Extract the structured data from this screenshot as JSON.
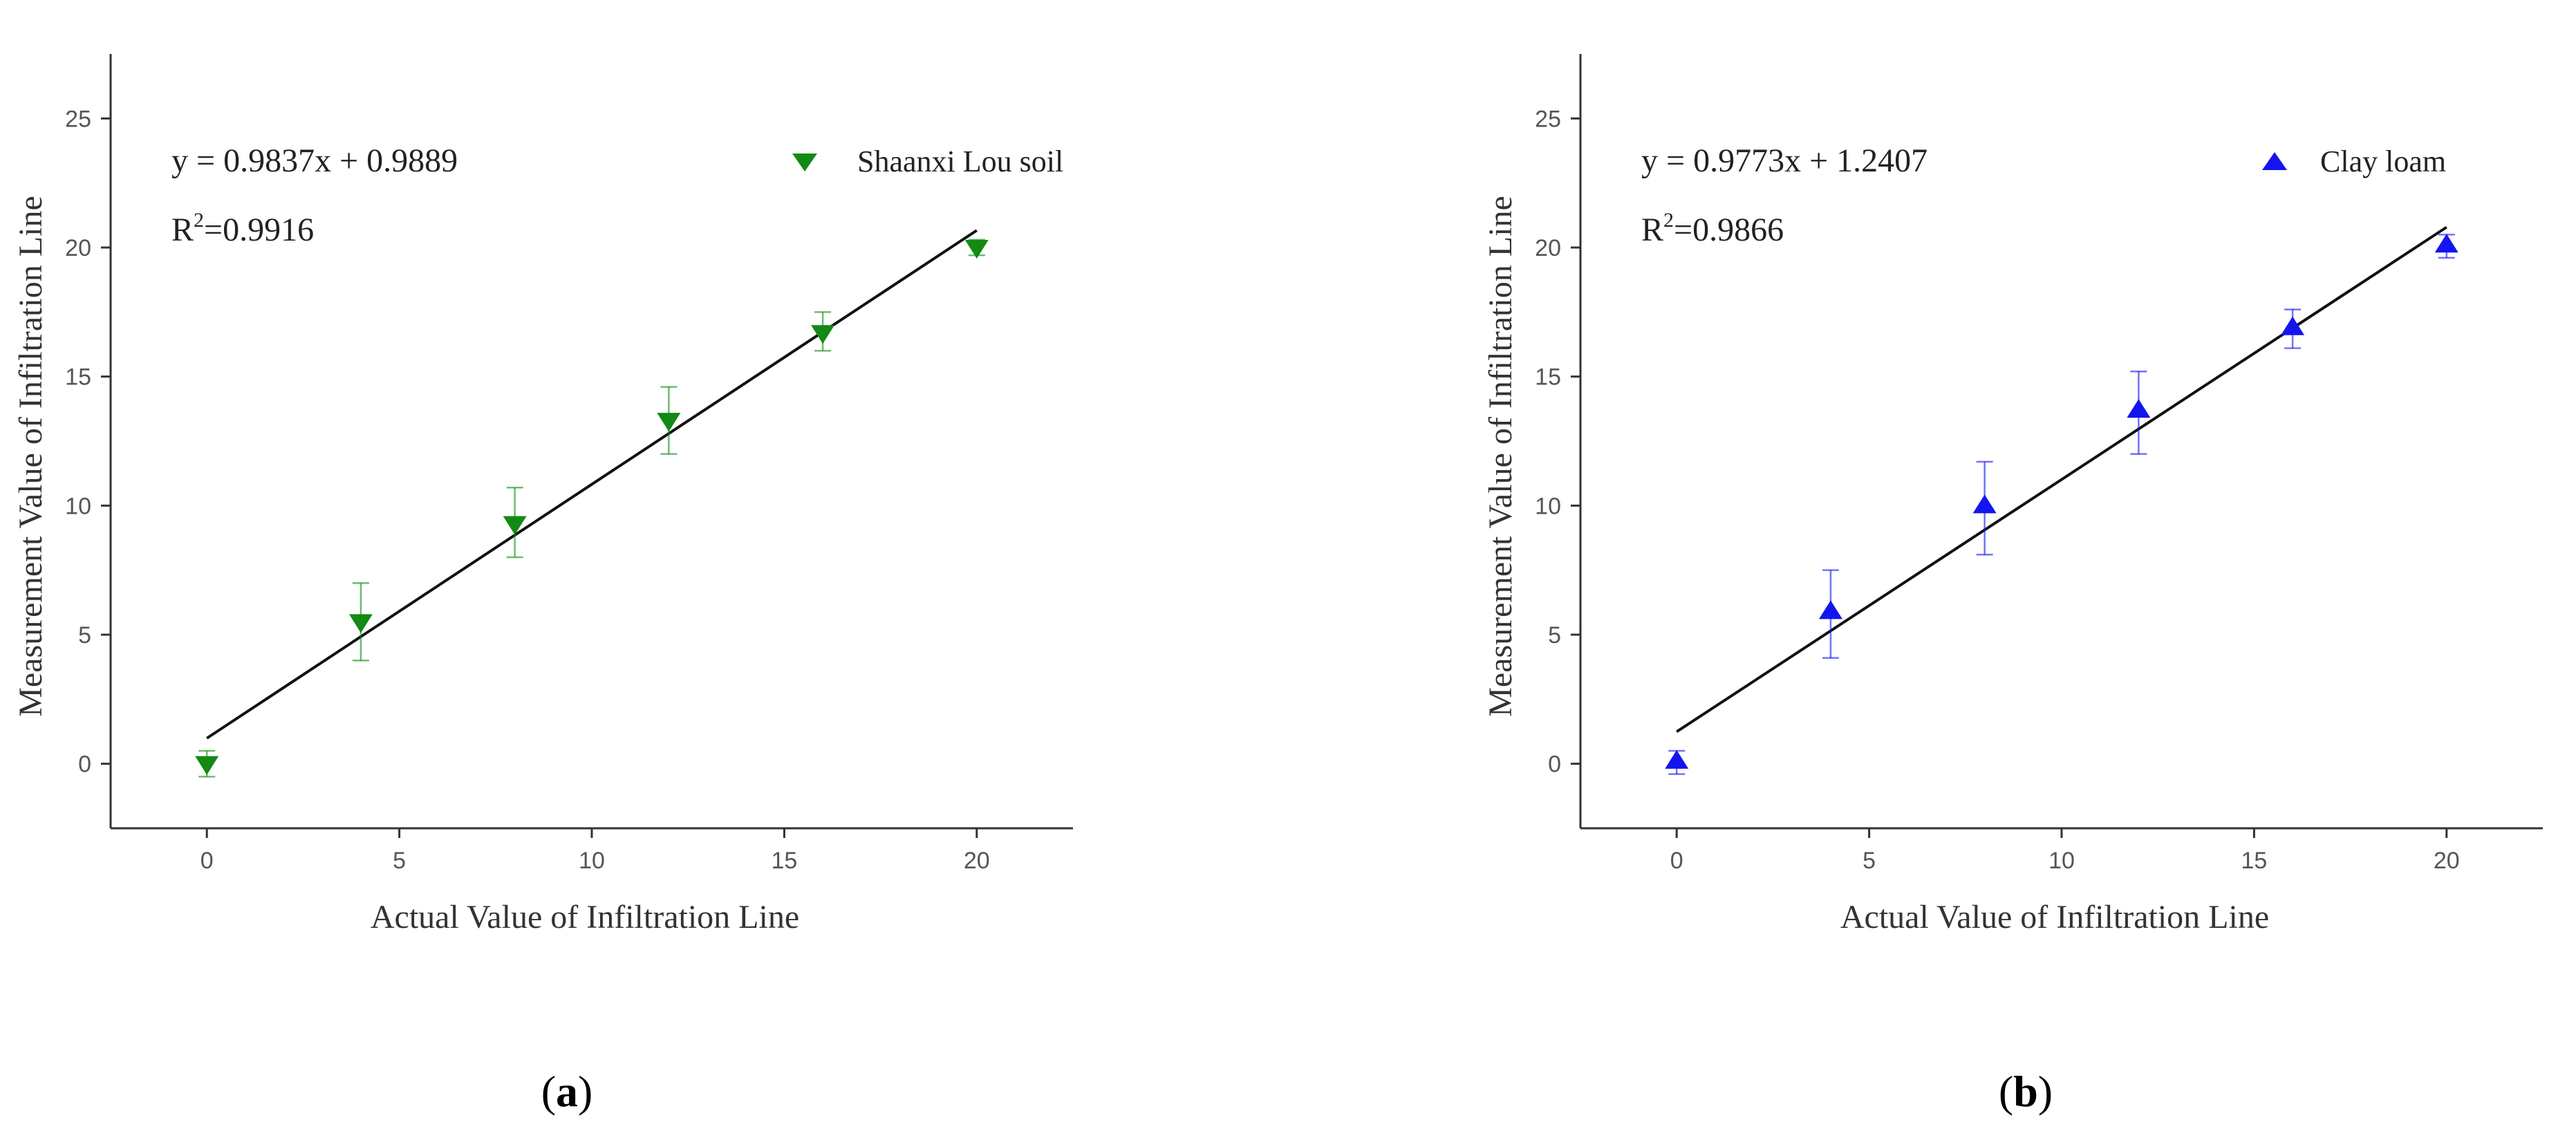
{
  "chart_data": [
    {
      "type": "scatter",
      "panel_label": "a",
      "xlabel": "Actual Value of Infiltration Line",
      "ylabel": "Measurement Value of Infiltration Line",
      "xlim": [
        -2.5,
        22.5
      ],
      "ylim": [
        -2.5,
        27.5
      ],
      "xticks": [
        0,
        5,
        10,
        15,
        20
      ],
      "yticks": [
        0,
        5,
        10,
        15,
        20,
        25
      ],
      "grid": false,
      "legend": "top-right",
      "marker": "triangle-down",
      "color": "#138a13",
      "series": [
        {
          "name": "Shaanxi Lou soil",
          "x": [
            0,
            4,
            8,
            12,
            16,
            20
          ],
          "y": [
            0.0,
            5.5,
            9.3,
            13.3,
            16.7,
            20.0
          ],
          "err_low": [
            0.5,
            1.5,
            1.3,
            1.3,
            0.7,
            0.3
          ],
          "err_high": [
            0.5,
            1.5,
            1.4,
            1.3,
            0.8,
            0.3
          ]
        }
      ],
      "fit": {
        "slope": 0.9837,
        "intercept": 0.9889,
        "x_range": [
          0,
          20
        ]
      },
      "equation": "y = 0.9837x + 0.9889",
      "r2": {
        "prefix": "R",
        "sup": "2",
        "value": "=0.9916"
      }
    },
    {
      "type": "scatter",
      "panel_label": "b",
      "xlabel": "Actual Value of Infiltration Line",
      "ylabel": "Measurement Value of Infiltration Line",
      "xlim": [
        -2.5,
        22.5
      ],
      "ylim": [
        -2.5,
        27.5
      ],
      "xticks": [
        0,
        5,
        10,
        15,
        20
      ],
      "yticks": [
        0,
        5,
        10,
        15,
        20,
        25
      ],
      "grid": false,
      "legend": "top-right",
      "marker": "triangle-up",
      "color": "#1414f0",
      "series": [
        {
          "name": "Clay loam",
          "x": [
            0,
            4,
            8,
            12,
            16,
            20
          ],
          "y": [
            0.1,
            5.9,
            10.0,
            13.7,
            16.9,
            20.1
          ],
          "err_low": [
            0.5,
            1.8,
            1.9,
            1.7,
            0.8,
            0.5
          ],
          "err_high": [
            0.4,
            1.6,
            1.7,
            1.5,
            0.7,
            0.4
          ]
        }
      ],
      "fit": {
        "slope": 0.9773,
        "intercept": 1.2407,
        "x_range": [
          0,
          20
        ]
      },
      "equation": "y = 0.9773x + 1.2407",
      "r2": {
        "prefix": "R",
        "sup": "2",
        "value": "=0.9866"
      }
    }
  ]
}
